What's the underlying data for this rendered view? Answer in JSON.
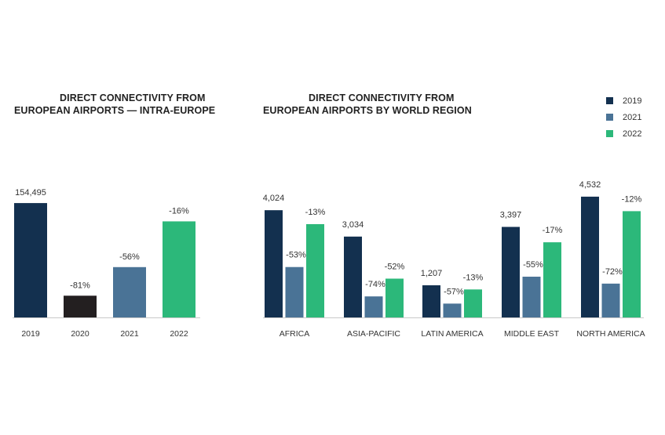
{
  "colors": {
    "2019": "#13304f",
    "2020": "#231f20",
    "2021": "#4a7396",
    "2022": "#2cb87a",
    "axis": "#c9c9c9"
  },
  "chart_data": [
    {
      "type": "bar",
      "title_lines": [
        "DIRECT CONNECTIVITY FROM",
        "EUROPEAN AIRPORTS — INTRA-EUROPE"
      ],
      "categories": [
        "2019",
        "2020",
        "2021",
        "2022"
      ],
      "values": [
        154495,
        29354,
        67978,
        129776
      ],
      "bar_colors": [
        "#13304f",
        "#231f20",
        "#4a7396",
        "#2cb87a"
      ],
      "labels": [
        "154,495",
        "-81%",
        "-56%",
        "-16%"
      ],
      "ylim": [
        0,
        180000
      ]
    },
    {
      "type": "bar",
      "title_lines": [
        "DIRECT CONNECTIVITY FROM",
        "EUROPEAN AIRPORTS BY WORLD REGION"
      ],
      "categories": [
        "AFRICA",
        "ASIA-PACIFIC",
        "LATIN AMERICA",
        "MIDDLE EAST",
        "NORTH AMERICA"
      ],
      "legend_position": "top-right",
      "ylim": [
        0,
        5000
      ],
      "series": [
        {
          "name": "2019",
          "color": "#13304f",
          "values": [
            4024,
            3034,
            1207,
            3397,
            4532
          ],
          "labels": [
            "4,024",
            "3,034",
            "1,207",
            "3,397",
            "4,532"
          ]
        },
        {
          "name": "2021",
          "color": "#4a7396",
          "values": [
            1891,
            789,
            519,
            1529,
            1269
          ],
          "labels": [
            "-53%",
            "-74%",
            "-57%",
            "-55%",
            "-72%"
          ]
        },
        {
          "name": "2022",
          "color": "#2cb87a",
          "values": [
            3501,
            1456,
            1050,
            2820,
            3988
          ],
          "labels": [
            "-13%",
            "-52%",
            "-13%",
            "-17%",
            "-12%"
          ]
        }
      ]
    }
  ]
}
